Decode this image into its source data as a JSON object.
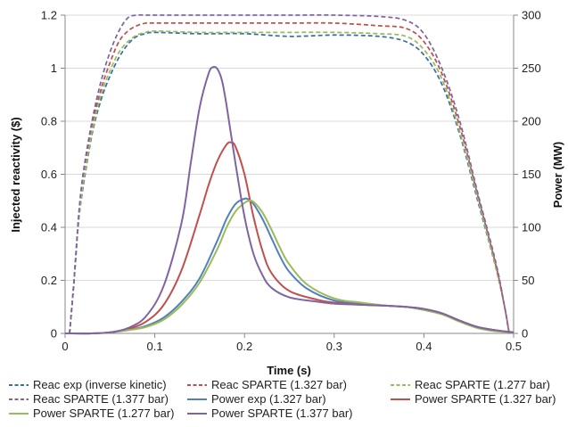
{
  "chart_data": {
    "type": "line",
    "xlabel": "Time (s)",
    "ylabel": "Injected reactivity ($)",
    "y2label": "Power (MW)",
    "xlim": [
      0,
      0.5
    ],
    "ylim": [
      0,
      1.2
    ],
    "y2lim": [
      0,
      300
    ],
    "xticks": [
      "0",
      "0.1",
      "0.2",
      "0.3",
      "0.4",
      "0.5"
    ],
    "yticks": [
      "0",
      "0.2",
      "0.4",
      "0.6",
      "0.8",
      "1",
      "1.2"
    ],
    "y2ticks": [
      "0",
      "50",
      "100",
      "150",
      "200",
      "250",
      "300"
    ],
    "grid": true,
    "legend_position": "bottom",
    "series": [
      {
        "name": "Reac exp (inverse kinetic)",
        "axis": "left",
        "color": "#3A6FA8",
        "dash": "dashed",
        "x": [
          0.005,
          0.01,
          0.015,
          0.02,
          0.03,
          0.04,
          0.05,
          0.06,
          0.07,
          0.08,
          0.09,
          0.1,
          0.15,
          0.2,
          0.25,
          0.3,
          0.35,
          0.38,
          0.4,
          0.42,
          0.44,
          0.46,
          0.48,
          0.49,
          0.495
        ],
        "y": [
          0.0,
          0.2,
          0.42,
          0.55,
          0.75,
          0.88,
          0.97,
          1.04,
          1.09,
          1.12,
          1.13,
          1.135,
          1.13,
          1.13,
          1.12,
          1.125,
          1.12,
          1.1,
          1.05,
          0.94,
          0.75,
          0.5,
          0.25,
          0.1,
          0.0
        ]
      },
      {
        "name": "Reac SPARTE (1.327 bar)",
        "axis": "left",
        "color": "#C0504D",
        "dash": "dashed",
        "x": [
          0.005,
          0.01,
          0.015,
          0.02,
          0.03,
          0.04,
          0.05,
          0.06,
          0.07,
          0.08,
          0.09,
          0.1,
          0.15,
          0.2,
          0.25,
          0.3,
          0.35,
          0.38,
          0.4,
          0.42,
          0.44,
          0.46,
          0.48,
          0.49,
          0.495
        ],
        "y": [
          0.0,
          0.2,
          0.43,
          0.58,
          0.78,
          0.92,
          1.02,
          1.1,
          1.14,
          1.16,
          1.17,
          1.17,
          1.17,
          1.17,
          1.17,
          1.17,
          1.16,
          1.15,
          1.1,
          0.98,
          0.78,
          0.52,
          0.26,
          0.1,
          0.0
        ]
      },
      {
        "name": "Reac SPARTE (1.277 bar)",
        "axis": "left",
        "color": "#9BBB59",
        "dash": "dashed",
        "x": [
          0.005,
          0.01,
          0.015,
          0.02,
          0.03,
          0.04,
          0.05,
          0.06,
          0.07,
          0.08,
          0.09,
          0.1,
          0.15,
          0.2,
          0.25,
          0.3,
          0.35,
          0.38,
          0.4,
          0.42,
          0.44,
          0.46,
          0.48,
          0.49,
          0.495
        ],
        "y": [
          0.0,
          0.2,
          0.42,
          0.56,
          0.76,
          0.9,
          0.99,
          1.06,
          1.1,
          1.125,
          1.135,
          1.14,
          1.135,
          1.135,
          1.135,
          1.135,
          1.13,
          1.12,
          1.07,
          0.96,
          0.76,
          0.51,
          0.25,
          0.1,
          0.0
        ]
      },
      {
        "name": "Reac SPARTE (1.377 bar)",
        "axis": "left",
        "color": "#8064A2",
        "dash": "dashed",
        "x": [
          0.005,
          0.01,
          0.015,
          0.02,
          0.03,
          0.04,
          0.05,
          0.06,
          0.07,
          0.08,
          0.09,
          0.1,
          0.15,
          0.2,
          0.25,
          0.3,
          0.35,
          0.38,
          0.4,
          0.42,
          0.44,
          0.46,
          0.48,
          0.49,
          0.495
        ],
        "y": [
          0.0,
          0.2,
          0.44,
          0.6,
          0.8,
          0.95,
          1.06,
          1.14,
          1.19,
          1.2,
          1.2,
          1.2,
          1.2,
          1.2,
          1.2,
          1.2,
          1.195,
          1.18,
          1.13,
          1.0,
          0.8,
          0.53,
          0.27,
          0.1,
          0.0
        ]
      },
      {
        "name": "Power exp (1.327 bar)",
        "axis": "right",
        "color": "#4F81BD",
        "dash": "solid",
        "x": [
          0.0,
          0.03,
          0.05,
          0.07,
          0.09,
          0.11,
          0.13,
          0.15,
          0.17,
          0.18,
          0.19,
          0.2,
          0.205,
          0.21,
          0.22,
          0.23,
          0.24,
          0.25,
          0.27,
          0.3,
          0.33,
          0.36,
          0.38,
          0.4,
          0.42,
          0.44,
          0.46,
          0.48,
          0.5
        ],
        "y": [
          0,
          0,
          1,
          3,
          7,
          15,
          30,
          52,
          88,
          108,
          122,
          127,
          126,
          122,
          108,
          90,
          72,
          58,
          42,
          31,
          28,
          26,
          25,
          23,
          19,
          12,
          6,
          3,
          1
        ]
      },
      {
        "name": "Power SPARTE (1.327 bar)",
        "axis": "right",
        "color": "#C0504D",
        "dash": "solid",
        "x": [
          0.0,
          0.03,
          0.05,
          0.07,
          0.09,
          0.11,
          0.13,
          0.15,
          0.16,
          0.17,
          0.18,
          0.185,
          0.19,
          0.2,
          0.21,
          0.22,
          0.23,
          0.25,
          0.28,
          0.3,
          0.33,
          0.36,
          0.38,
          0.4,
          0.42,
          0.44,
          0.46,
          0.48,
          0.5
        ],
        "y": [
          0,
          0,
          1,
          4,
          11,
          27,
          60,
          112,
          140,
          163,
          178,
          180,
          176,
          150,
          110,
          78,
          57,
          40,
          32,
          29,
          27,
          26,
          25,
          23,
          19,
          12,
          6,
          3,
          1
        ]
      },
      {
        "name": "Power SPARTE (1.277 bar)",
        "axis": "right",
        "color": "#9BBB59",
        "dash": "solid",
        "x": [
          0.0,
          0.03,
          0.05,
          0.07,
          0.09,
          0.11,
          0.13,
          0.15,
          0.17,
          0.18,
          0.19,
          0.2,
          0.205,
          0.21,
          0.22,
          0.23,
          0.24,
          0.25,
          0.27,
          0.3,
          0.33,
          0.36,
          0.38,
          0.4,
          0.42,
          0.44,
          0.46,
          0.48,
          0.5
        ],
        "y": [
          0,
          0,
          1,
          3,
          6,
          13,
          27,
          48,
          80,
          100,
          115,
          123,
          125,
          124,
          114,
          98,
          80,
          65,
          46,
          33,
          29,
          26,
          25,
          22,
          18,
          11,
          5,
          2,
          1
        ]
      },
      {
        "name": "Power SPARTE (1.377 bar)",
        "axis": "right",
        "color": "#8064A2",
        "dash": "solid",
        "x": [
          0.0,
          0.03,
          0.05,
          0.07,
          0.09,
          0.11,
          0.13,
          0.14,
          0.15,
          0.16,
          0.165,
          0.17,
          0.175,
          0.18,
          0.19,
          0.2,
          0.21,
          0.22,
          0.23,
          0.25,
          0.28,
          0.3,
          0.33,
          0.36,
          0.38,
          0.4,
          0.42,
          0.44,
          0.46,
          0.48,
          0.5
        ],
        "y": [
          0,
          0,
          1,
          5,
          16,
          45,
          105,
          160,
          213,
          245,
          251,
          249,
          238,
          215,
          160,
          110,
          75,
          55,
          43,
          34,
          30,
          28,
          27,
          26,
          25,
          23,
          19,
          12,
          6,
          3,
          1
        ]
      }
    ]
  }
}
